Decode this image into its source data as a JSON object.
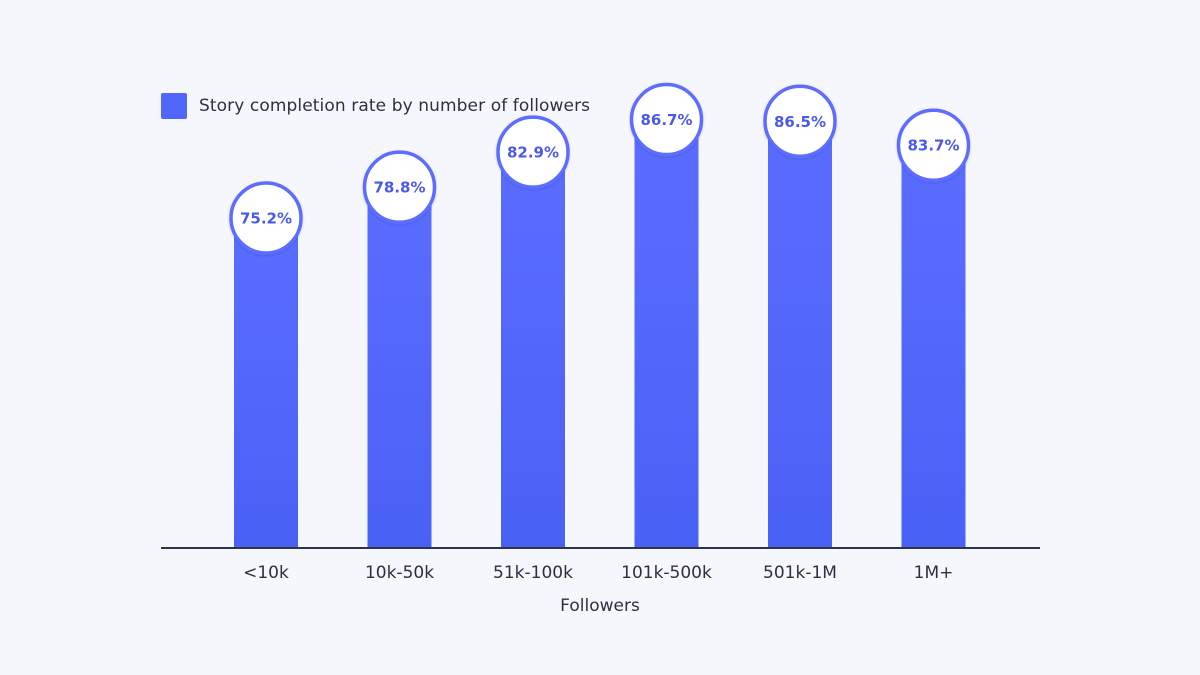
{
  "colors": {
    "background": "#f6f7fc",
    "bar_top": "#5b6dff",
    "bar_bottom": "#4a61f5",
    "bubble_fill": "#ffffff",
    "value_text": "#4a5ae8",
    "axis_line": "#2f3447",
    "axis_text": "#2b3142"
  },
  "legend": {
    "label": "Story completion rate by number of followers",
    "swatch_color": "#5067fa"
  },
  "chart_data": {
    "type": "bar",
    "categories": [
      "<10k",
      "10k-50k",
      "51k-100k",
      "101k-500k",
      "501k-1M",
      "1M+"
    ],
    "series": [
      {
        "name": "Story completion rate by number of followers",
        "values": [
          75.2,
          78.8,
          82.9,
          86.7,
          86.5,
          83.7
        ]
      }
    ],
    "value_labels": [
      "75.2%",
      "78.8%",
      "82.9%",
      "86.7%",
      "86.5%",
      "83.7%"
    ],
    "title": "",
    "xlabel": "Followers",
    "ylabel": "",
    "ylim": [
      0,
      100
    ],
    "unit": "%",
    "grid": false,
    "legend_position": "top-left"
  }
}
